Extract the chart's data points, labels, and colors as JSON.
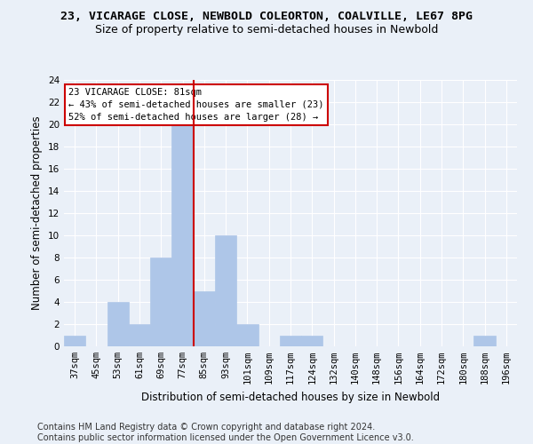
{
  "title": "23, VICARAGE CLOSE, NEWBOLD COLEORTON, COALVILLE, LE67 8PG",
  "subtitle": "Size of property relative to semi-detached houses in Newbold",
  "xlabel": "Distribution of semi-detached houses by size in Newbold",
  "ylabel": "Number of semi-detached properties",
  "footer": "Contains HM Land Registry data © Crown copyright and database right 2024.\nContains public sector information licensed under the Open Government Licence v3.0.",
  "categories": [
    "37sqm",
    "45sqm",
    "53sqm",
    "61sqm",
    "69sqm",
    "77sqm",
    "85sqm",
    "93sqm",
    "101sqm",
    "109sqm",
    "117sqm",
    "124sqm",
    "132sqm",
    "140sqm",
    "148sqm",
    "156sqm",
    "164sqm",
    "172sqm",
    "180sqm",
    "188sqm",
    "196sqm"
  ],
  "values": [
    1,
    0,
    4,
    2,
    8,
    20,
    5,
    10,
    2,
    0,
    1,
    1,
    0,
    0,
    0,
    0,
    0,
    0,
    0,
    1,
    0
  ],
  "bar_color": "#aec6e8",
  "bar_edge_color": "#aec6e8",
  "red_line_x": 5.5,
  "annotation_text": "23 VICARAGE CLOSE: 81sqm\n← 43% of semi-detached houses are smaller (23)\n52% of semi-detached houses are larger (28) →",
  "ylim": [
    0,
    24
  ],
  "yticks": [
    0,
    2,
    4,
    6,
    8,
    10,
    12,
    14,
    16,
    18,
    20,
    22,
    24
  ],
  "background_color": "#eaf0f8",
  "plot_bg_color": "#eaf0f8",
  "grid_color": "#ffffff",
  "annotation_box_color": "#ffffff",
  "annotation_border_color": "#cc0000",
  "red_line_color": "#cc0000",
  "title_fontsize": 9.5,
  "subtitle_fontsize": 9,
  "axis_label_fontsize": 8.5,
  "tick_fontsize": 7.5,
  "footer_fontsize": 7
}
